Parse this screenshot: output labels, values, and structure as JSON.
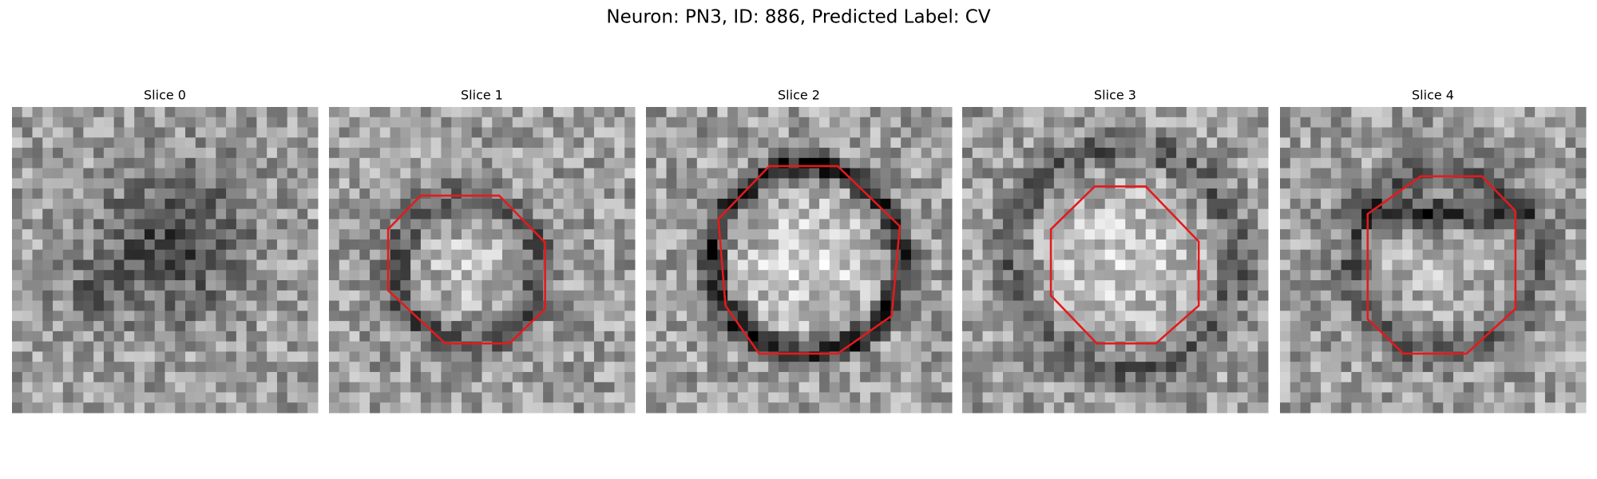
{
  "title": "Neuron: PN3, ID: 886, Predicted Label: CV",
  "panels": [
    {
      "title": "Slice 0"
    },
    {
      "title": "Slice 1"
    },
    {
      "title": "Slice 2"
    },
    {
      "title": "Slice 3"
    },
    {
      "title": "Slice 4"
    }
  ]
}
